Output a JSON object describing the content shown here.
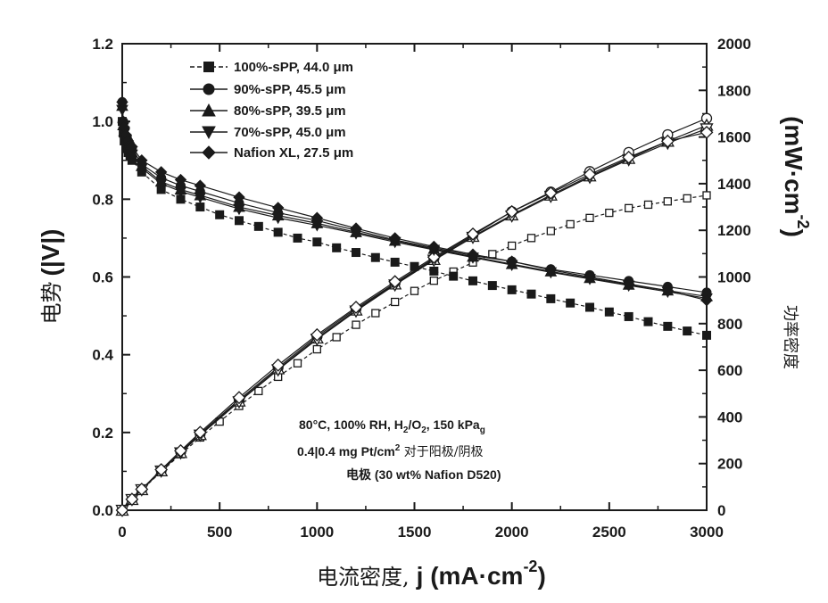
{
  "chart_data": {
    "type": "line",
    "xlabel_cn": "电流密度,",
    "xlabel_unit": "j (mA·cm",
    "xlabel_exp": "-2",
    "xlabel_close": ")",
    "ylabel_cn": "电势",
    "ylabel_unit": "(|V|)",
    "y2label_cn": "功率密度",
    "y2label_unit": "(mW·cm",
    "y2label_exp": "-2",
    "y2label_close": ")",
    "xlim": [
      0,
      3000
    ],
    "ylim": [
      0.0,
      1.2
    ],
    "y2lim": [
      0,
      2000
    ],
    "x_ticks": [
      "0",
      "500",
      "1000",
      "1500",
      "2000",
      "2500",
      "3000"
    ],
    "y_ticks": [
      "0.0",
      "0.2",
      "0.4",
      "0.6",
      "0.8",
      "1.0",
      "1.2"
    ],
    "y2_ticks": [
      "0",
      "200",
      "400",
      "600",
      "800",
      "1000",
      "1200",
      "1400",
      "1600",
      "1800",
      "2000"
    ],
    "annotation": {
      "line1_a": "80°C, 100% RH, H",
      "line1_sub1": "2",
      "line1_b": "/O",
      "line1_sub2": "2",
      "line1_c": ", 150 kPa",
      "line1_sub3": "g",
      "line2_a": "0.4|0.4 mg Pt/cm",
      "line2_sup": "2",
      "line2_b": " 对于阳极/阴极",
      "line3": "电极 (30 wt% Nafion D520)"
    },
    "legend": [
      {
        "label": "100%-sPP, 44.0 μm",
        "marker": "square"
      },
      {
        "label": "90%-sPP, 45.5 μm",
        "marker": "circle"
      },
      {
        "label": "80%-sPP, 39.5 μm",
        "marker": "triangle-up"
      },
      {
        "label": "70%-sPP, 45.0 μm",
        "marker": "triangle-down"
      },
      {
        "label": "Nafion XL, 27.5 μm",
        "marker": "diamond"
      }
    ],
    "polarization_series": [
      {
        "name": "100%-sPP, 44.0 μm",
        "marker": "square",
        "x": [
          0,
          5,
          10,
          20,
          30,
          40,
          50,
          100,
          200,
          300,
          400,
          500,
          600,
          700,
          800,
          900,
          1000,
          1100,
          1200,
          1300,
          1400,
          1500,
          1600,
          1700,
          1800,
          1900,
          2000,
          2100,
          2200,
          2300,
          2400,
          2500,
          2600,
          2700,
          2800,
          2900,
          3000
        ],
        "y": [
          1.0,
          0.97,
          0.95,
          0.93,
          0.92,
          0.91,
          0.9,
          0.87,
          0.825,
          0.8,
          0.78,
          0.76,
          0.745,
          0.73,
          0.715,
          0.7,
          0.69,
          0.675,
          0.663,
          0.65,
          0.638,
          0.627,
          0.615,
          0.602,
          0.59,
          0.578,
          0.567,
          0.556,
          0.544,
          0.533,
          0.522,
          0.51,
          0.498,
          0.485,
          0.473,
          0.461,
          0.45
        ]
      },
      {
        "name": "90%-sPP, 45.5 μm",
        "marker": "circle",
        "x": [
          0,
          5,
          10,
          20,
          30,
          40,
          50,
          100,
          200,
          300,
          400,
          600,
          800,
          1000,
          1200,
          1400,
          1600,
          1800,
          2000,
          2200,
          2400,
          2600,
          2800,
          3000
        ],
        "y": [
          1.05,
          1.0,
          0.98,
          0.96,
          0.95,
          0.94,
          0.93,
          0.89,
          0.855,
          0.835,
          0.82,
          0.79,
          0.765,
          0.745,
          0.72,
          0.695,
          0.675,
          0.655,
          0.64,
          0.62,
          0.605,
          0.59,
          0.575,
          0.56
        ]
      },
      {
        "name": "80%-sPP, 39.5 μm",
        "marker": "triangle-up",
        "x": [
          0,
          5,
          10,
          20,
          30,
          40,
          50,
          100,
          200,
          300,
          400,
          600,
          800,
          1000,
          1200,
          1400,
          1600,
          1800,
          2000,
          2200,
          2400,
          2600,
          2800,
          3000
        ],
        "y": [
          1.04,
          0.99,
          0.975,
          0.955,
          0.94,
          0.93,
          0.92,
          0.885,
          0.845,
          0.825,
          0.81,
          0.78,
          0.758,
          0.738,
          0.715,
          0.693,
          0.672,
          0.652,
          0.633,
          0.614,
          0.597,
          0.58,
          0.565,
          0.55
        ]
      },
      {
        "name": "70%-sPP, 45.0 μm",
        "marker": "triangle-down",
        "x": [
          0,
          5,
          10,
          20,
          30,
          40,
          50,
          100,
          200,
          300,
          400,
          600,
          800,
          1000,
          1200,
          1400,
          1600,
          1800,
          2000,
          2200,
          2400,
          2600,
          2800,
          3000
        ],
        "y": [
          1.03,
          0.985,
          0.97,
          0.95,
          0.935,
          0.925,
          0.915,
          0.88,
          0.84,
          0.82,
          0.805,
          0.775,
          0.752,
          0.733,
          0.712,
          0.69,
          0.67,
          0.65,
          0.631,
          0.612,
          0.595,
          0.578,
          0.562,
          0.545
        ]
      },
      {
        "name": "Nafion XL, 27.5 μm",
        "marker": "diamond",
        "x": [
          0,
          5,
          10,
          20,
          30,
          40,
          50,
          100,
          200,
          300,
          400,
          600,
          800,
          1000,
          1200,
          1400,
          1600,
          1800,
          2000,
          2200,
          2400,
          2600,
          2800,
          3000
        ],
        "y": [
          1.05,
          1.0,
          0.985,
          0.965,
          0.95,
          0.94,
          0.935,
          0.9,
          0.87,
          0.85,
          0.835,
          0.805,
          0.778,
          0.752,
          0.725,
          0.7,
          0.678,
          0.658,
          0.64,
          0.618,
          0.6,
          0.582,
          0.565,
          0.54
        ]
      }
    ],
    "power_series": [
      {
        "name": "100%-sPP, 44.0 μm",
        "marker": "square-open",
        "x": [
          0,
          50,
          100,
          200,
          300,
          400,
          500,
          600,
          700,
          800,
          900,
          1000,
          1100,
          1200,
          1300,
          1400,
          1500,
          1600,
          1700,
          1800,
          1900,
          2000,
          2100,
          2200,
          2300,
          2400,
          2500,
          2600,
          2700,
          2800,
          2900,
          3000
        ],
        "y": [
          0,
          45,
          87,
          165,
          240,
          312,
          380,
          447,
          511,
          572,
          630,
          690,
          742,
          795,
          845,
          893,
          940,
          984,
          1023,
          1062,
          1098,
          1134,
          1167,
          1197,
          1226,
          1253,
          1275,
          1295,
          1310,
          1324,
          1337,
          1350
        ]
      },
      {
        "name": "90%-sPP, 45.5 μm",
        "marker": "circle-open",
        "x": [
          0,
          50,
          100,
          200,
          300,
          400,
          600,
          800,
          1000,
          1200,
          1400,
          1600,
          1800,
          2000,
          2200,
          2400,
          2600,
          2800,
          3000
        ],
        "y": [
          0,
          46,
          89,
          171,
          250,
          328,
          474,
          612,
          745,
          864,
          973,
          1080,
          1179,
          1280,
          1364,
          1452,
          1534,
          1610,
          1680
        ]
      },
      {
        "name": "80%-sPP, 39.5 μm",
        "marker": "triangle-up-open",
        "x": [
          0,
          50,
          100,
          200,
          300,
          400,
          600,
          800,
          1000,
          1200,
          1400,
          1600,
          1800,
          2000,
          2200,
          2400,
          2600,
          2800,
          3000
        ],
        "y": [
          0,
          46,
          88,
          169,
          247,
          324,
          468,
          606,
          738,
          858,
          970,
          1075,
          1174,
          1266,
          1351,
          1433,
          1508,
          1582,
          1650
        ]
      },
      {
        "name": "70%-sPP, 45.0 μm",
        "marker": "triangle-down-open",
        "x": [
          0,
          50,
          100,
          200,
          300,
          400,
          600,
          800,
          1000,
          1200,
          1400,
          1600,
          1800,
          2000,
          2200,
          2400,
          2600,
          2800,
          3000
        ],
        "y": [
          0,
          46,
          88,
          168,
          246,
          322,
          465,
          602,
          733,
          854,
          966,
          1072,
          1170,
          1262,
          1346,
          1428,
          1503,
          1574,
          1635
        ]
      },
      {
        "name": "Nafion XL, 27.5 μm",
        "marker": "diamond-open",
        "x": [
          0,
          50,
          100,
          200,
          300,
          400,
          600,
          800,
          1000,
          1200,
          1400,
          1600,
          1800,
          2000,
          2200,
          2400,
          2600,
          2800,
          3000
        ],
        "y": [
          0,
          47,
          90,
          174,
          255,
          334,
          483,
          622,
          752,
          870,
          980,
          1085,
          1184,
          1280,
          1360,
          1440,
          1513,
          1582,
          1620
        ]
      }
    ]
  }
}
